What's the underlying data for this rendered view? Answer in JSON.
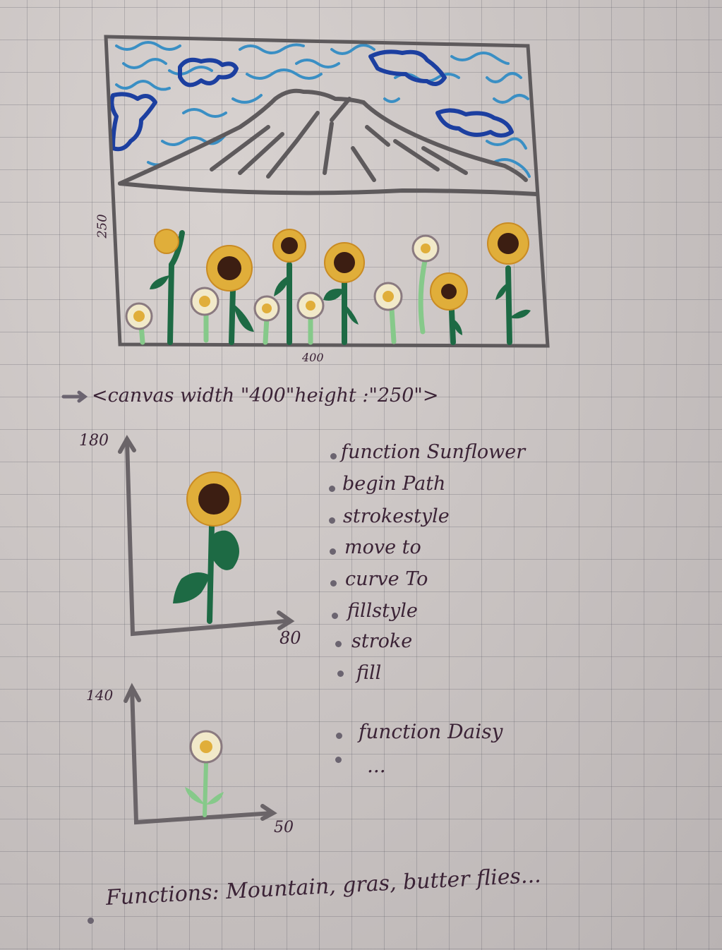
{
  "canvas_sketch": {
    "height_label": "250",
    "width_label": "400"
  },
  "canvas_tag": "<canvas width \"400\"height :\"250\">",
  "sunflower_sketch": {
    "y_axis_label": "180",
    "x_axis_label": "80",
    "steps": [
      "function Sunflower",
      "begin Path",
      "strokestyle",
      "move to",
      "curve To",
      "fillstyle",
      "stroke",
      "fill"
    ]
  },
  "daisy_sketch": {
    "y_axis_label": "140",
    "x_axis_label": "50",
    "steps": [
      "function Daisy",
      "..."
    ]
  },
  "functions_note": "Functions: Mountain, gras, butter flies...",
  "colors": {
    "ink_gray": "#5e5a5c",
    "sky_blue": "#3a8fc4",
    "cloud_blue": "#1c3fa0",
    "petal_yellow": "#e0ae3a",
    "seed_brown": "#3c1e12",
    "stem_dark_green": "#1d6a44",
    "stem_light_green": "#86c98a",
    "daisy_outline": "#8a7a80"
  }
}
